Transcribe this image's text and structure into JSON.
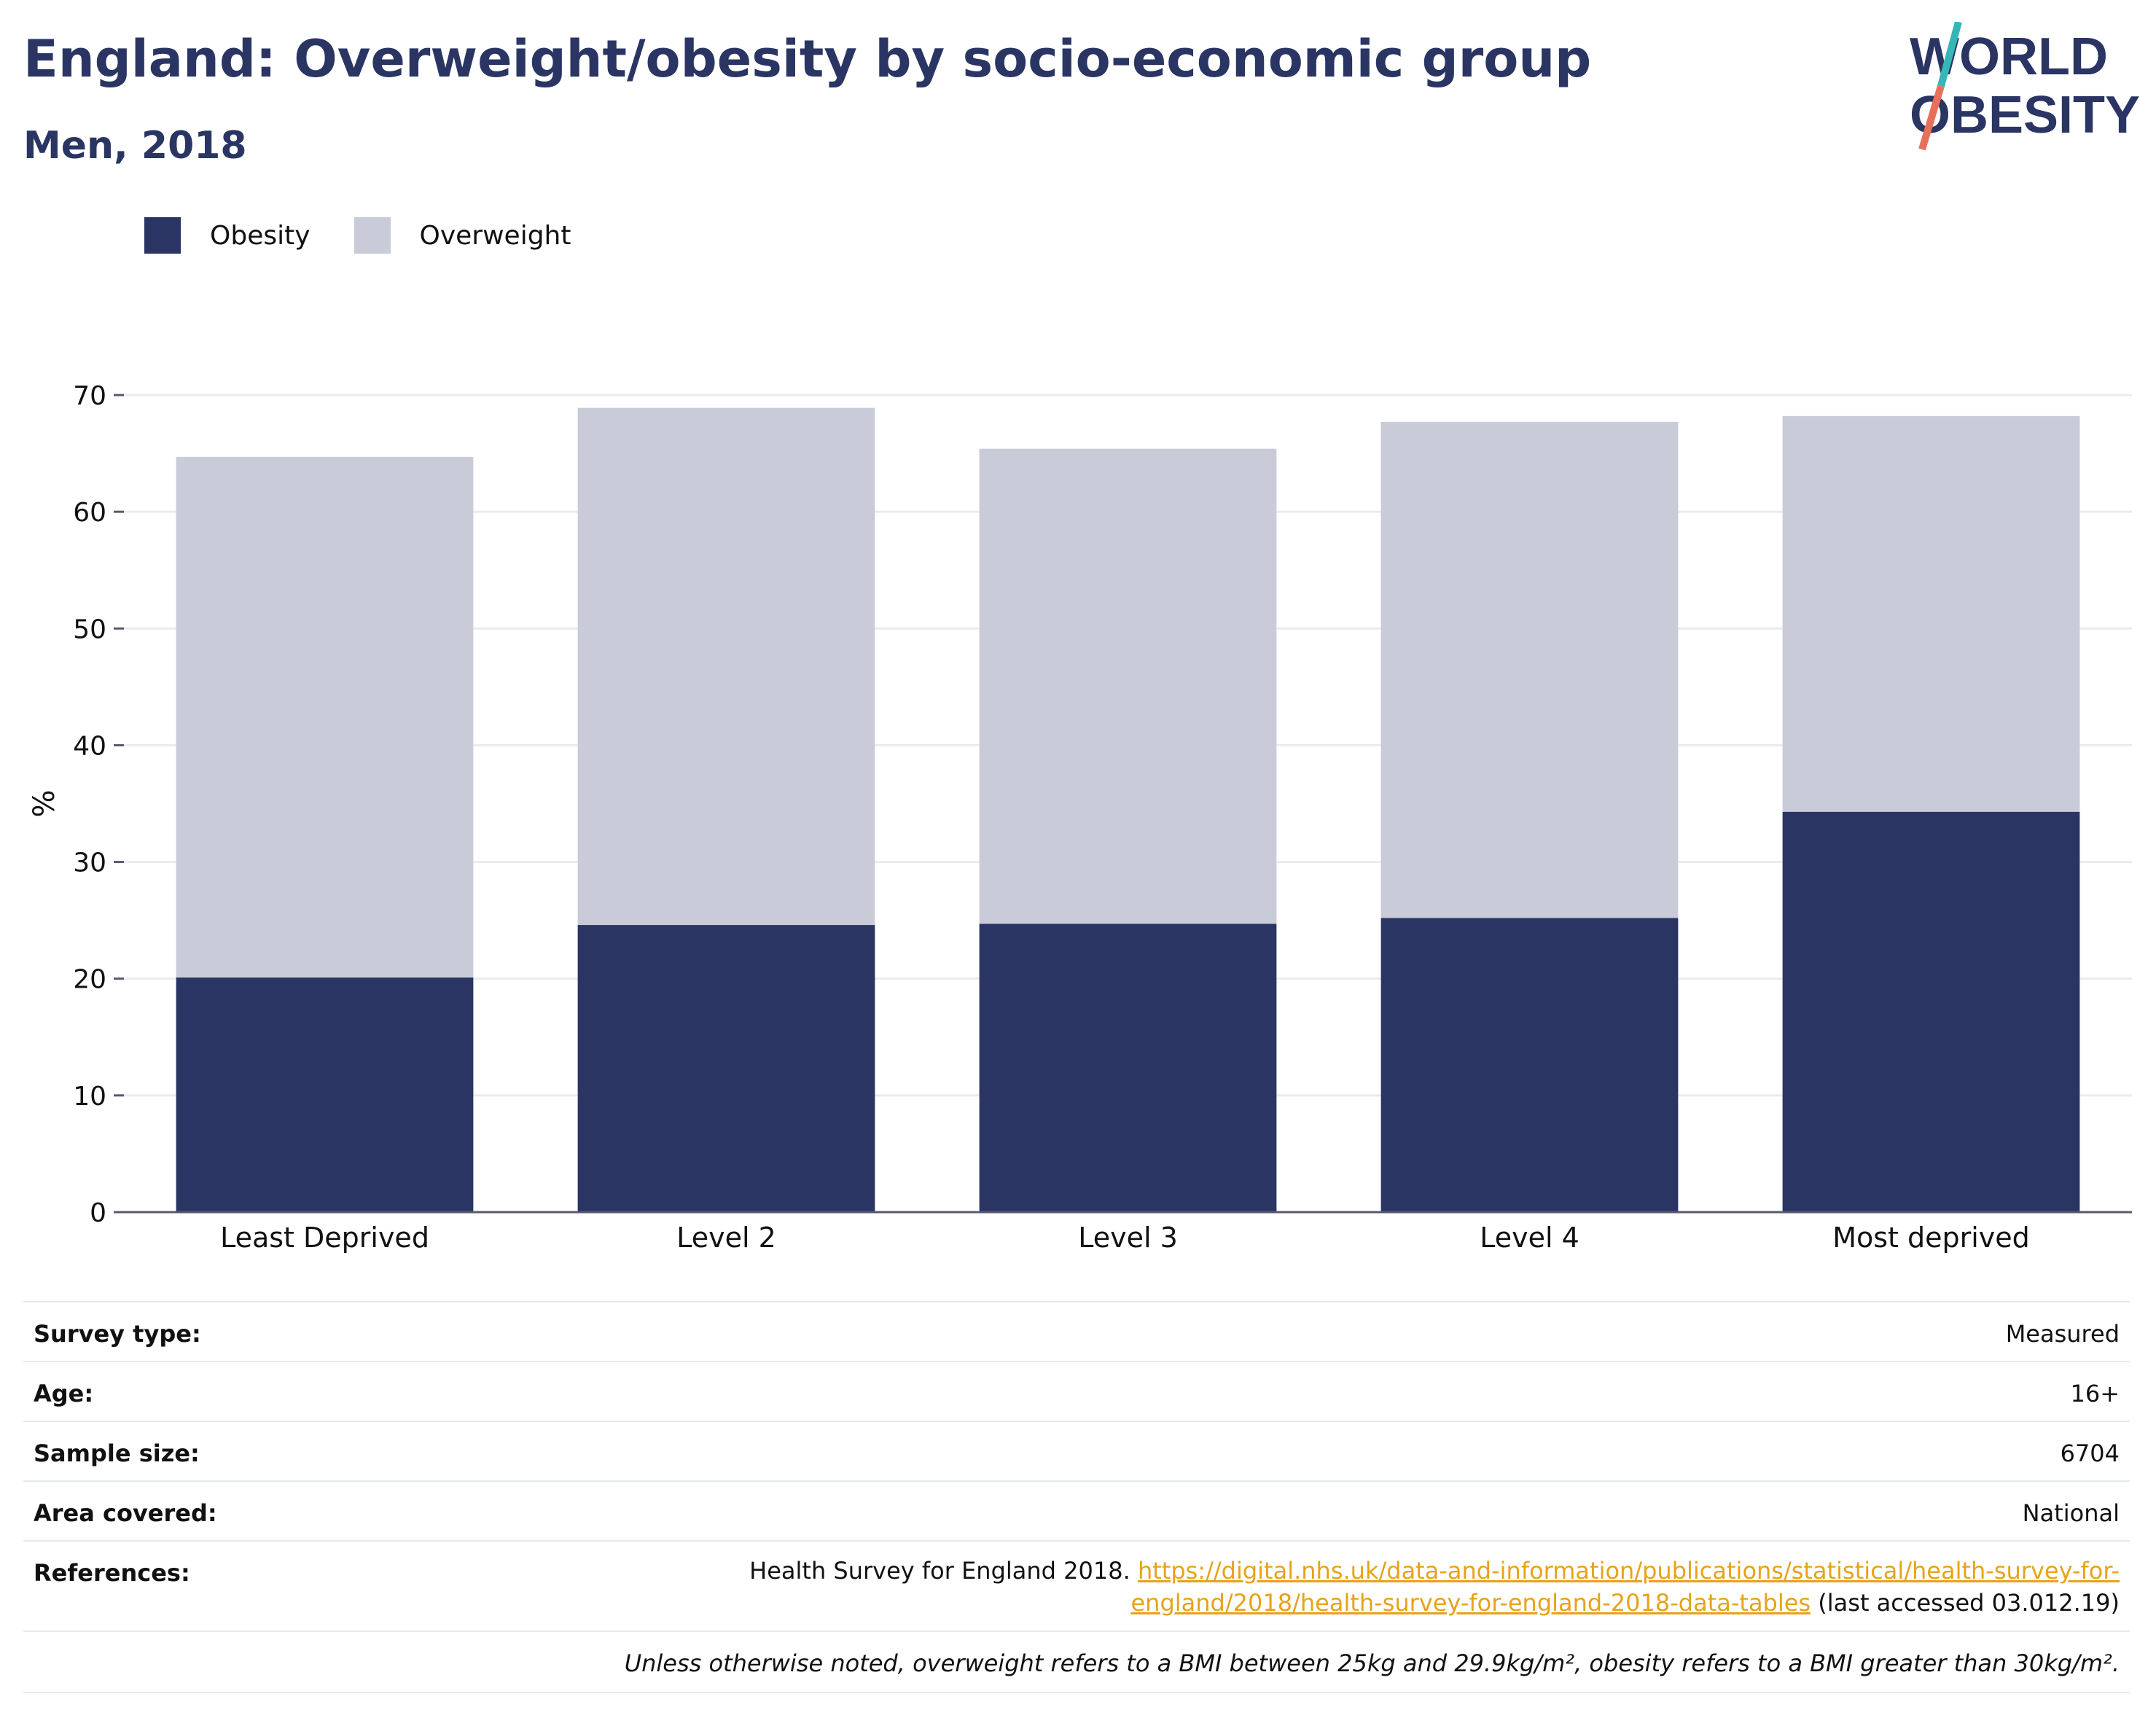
{
  "header": {
    "title": "England: Overweight/obesity by socio-economic group",
    "subtitle": "Men, 2018"
  },
  "logo": {
    "line1": "WORLD",
    "line2": "OBESITY",
    "colors": {
      "text": "#2a3563",
      "slash_top": "#36b7b5",
      "slash_bottom": "#e8705a"
    }
  },
  "legend": {
    "items": [
      {
        "label": "Obesity",
        "color": "#2a3563"
      },
      {
        "label": "Overweight",
        "color": "#c9ccd8"
      }
    ]
  },
  "chart_data": {
    "type": "bar",
    "stacked": true,
    "categories": [
      "Least Deprived",
      "Level 2",
      "Level 3",
      "Level 4",
      "Most deprived"
    ],
    "series": [
      {
        "name": "Obesity",
        "color": "#2a3563",
        "values": [
          20.1,
          24.6,
          24.7,
          25.2,
          34.3
        ]
      },
      {
        "name": "Overweight",
        "color": "#c9ccd8",
        "values": [
          44.6,
          44.3,
          40.7,
          42.5,
          33.9
        ]
      }
    ],
    "ylabel": "%",
    "ylim": [
      0,
      70
    ],
    "yticks": [
      0,
      10,
      20,
      30,
      40,
      50,
      60,
      70
    ],
    "grid": true,
    "legend_position": "top-left"
  },
  "info": {
    "survey_type_label": "Survey type:",
    "survey_type_value": "Measured",
    "age_label": "Age:",
    "age_value": "16+",
    "sample_size_label": "Sample size:",
    "sample_size_value": "6704",
    "area_label": "Area covered:",
    "area_value": "National",
    "references_label": "References:",
    "references_prefix": "Health Survey for England 2018. ",
    "references_link_line1": "https://digital.nhs.uk/data-and-information/publications/statistical/health-survey-for-",
    "references_link_line2": "england/2018/health-survey-for-england-2018-data-tables",
    "references_suffix": " (last accessed 03.012.19)",
    "note": "Unless otherwise noted, overweight refers to a BMI between 25kg and 29.9kg/m², obesity refers to a BMI greater than 30kg/m²."
  }
}
